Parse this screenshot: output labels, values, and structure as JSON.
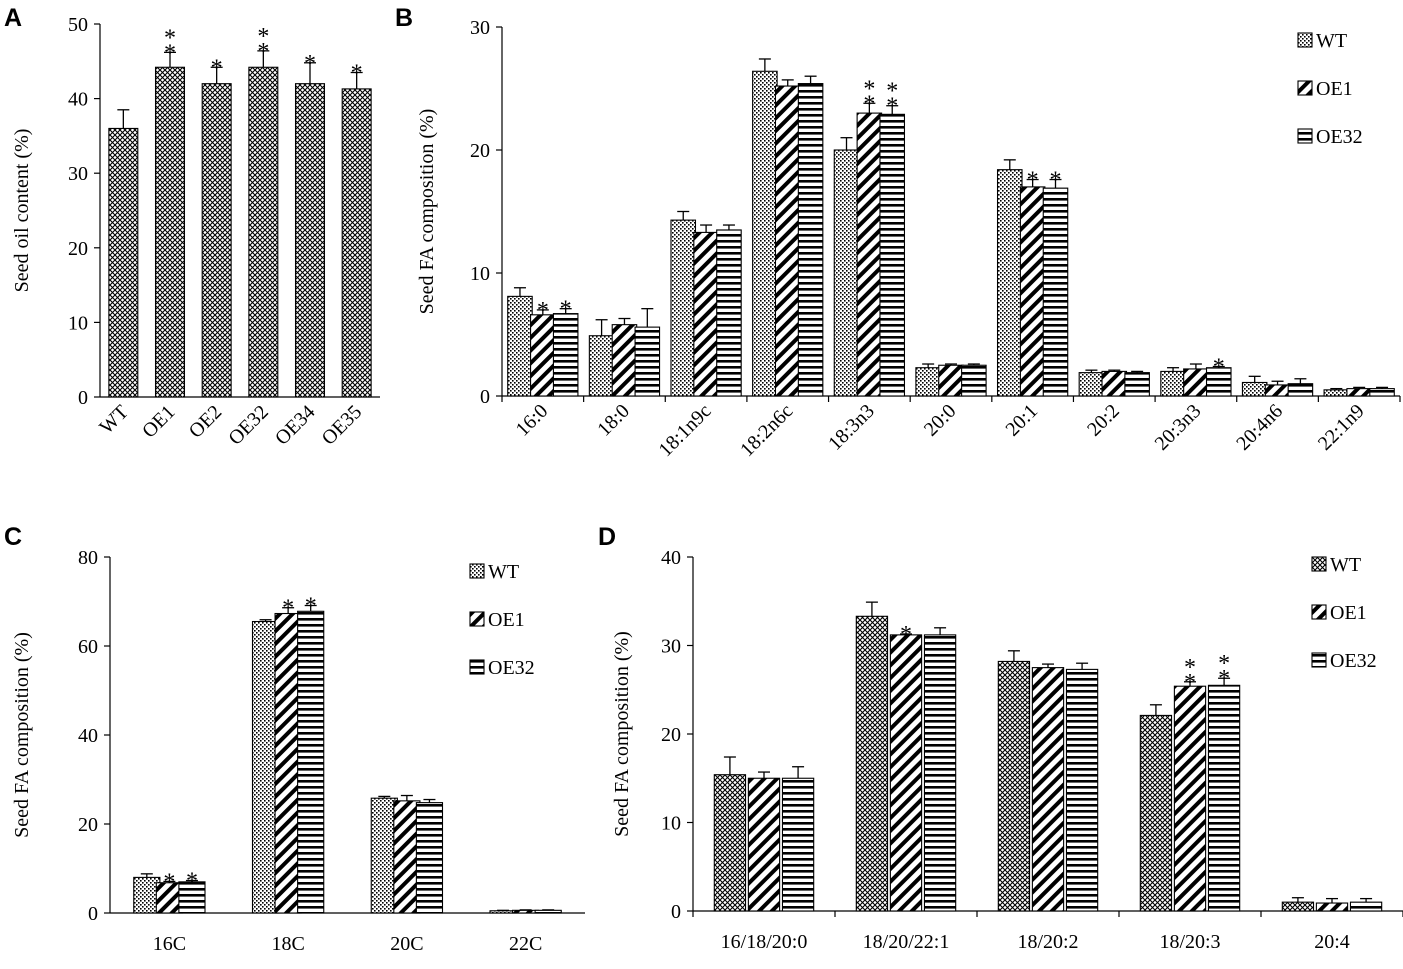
{
  "chart_data": [
    {
      "panel": "A",
      "type": "bar",
      "ylabel": "Seed oil content (%)",
      "xlabel": "",
      "ylim": [
        0,
        50
      ],
      "yticks": [
        0,
        10,
        20,
        30,
        40,
        50
      ],
      "categories": [
        "WT",
        "OE1",
        "OE2",
        "OE32",
        "OE34",
        "OE35"
      ],
      "series": [
        {
          "name": "Seed oil content",
          "values": [
            36.0,
            44.2,
            42.0,
            44.2,
            42.0,
            41.3
          ],
          "errors": [
            2.5,
            2.0,
            2.2,
            2.2,
            2.8,
            2.2
          ],
          "stars": [
            "",
            "**",
            "*",
            "**",
            "*",
            "*"
          ],
          "pattern": "cross"
        }
      ]
    },
    {
      "panel": "B",
      "type": "bar",
      "ylabel": "Seed FA composition (%)",
      "xlabel": "",
      "ylim": [
        0,
        30
      ],
      "yticks": [
        0,
        10,
        20,
        30
      ],
      "legend_position": "top-right",
      "categories": [
        "16:0",
        "18:0",
        "18:1n9c",
        "18:2n6c",
        "18:3n3",
        "20:0",
        "20:1",
        "20:2",
        "20:3n3",
        "20:4n6",
        "22:1n9"
      ],
      "series": [
        {
          "name": "WT",
          "pattern": "dots",
          "values": [
            8.1,
            4.9,
            14.3,
            26.4,
            20.0,
            2.3,
            18.4,
            1.9,
            2.0,
            1.1,
            0.5
          ],
          "errors": [
            0.7,
            1.3,
            0.7,
            1.0,
            1.0,
            0.3,
            0.8,
            0.2,
            0.3,
            0.5,
            0.1
          ],
          "stars": [
            "",
            "",
            "",
            "",
            "",
            "",
            "",
            "",
            "",
            "",
            ""
          ]
        },
        {
          "name": "OE1",
          "pattern": "diag",
          "values": [
            6.6,
            5.8,
            13.3,
            25.2,
            23.0,
            2.5,
            17.0,
            2.0,
            2.2,
            0.9,
            0.6
          ],
          "errors": [
            0.4,
            0.5,
            0.6,
            0.5,
            0.8,
            0.1,
            0.6,
            0.1,
            0.4,
            0.3,
            0.1
          ],
          "stars": [
            "*",
            "",
            "",
            "",
            "**",
            "",
            "*",
            "",
            "",
            "",
            ""
          ]
        },
        {
          "name": "OE32",
          "pattern": "horiz",
          "values": [
            6.7,
            5.6,
            13.5,
            25.4,
            22.9,
            2.5,
            16.9,
            1.9,
            2.3,
            1.0,
            0.6
          ],
          "errors": [
            0.4,
            1.5,
            0.4,
            0.6,
            0.7,
            0.1,
            0.7,
            0.1,
            0.1,
            0.4,
            0.1
          ],
          "stars": [
            "*",
            "",
            "",
            "",
            "**",
            "",
            "*",
            "",
            "*",
            "",
            ""
          ]
        }
      ]
    },
    {
      "panel": "C",
      "type": "bar",
      "ylabel": "Seed FA composition (%)",
      "xlabel": "",
      "ylim": [
        0,
        80
      ],
      "yticks": [
        0,
        20,
        40,
        60,
        80
      ],
      "legend_position": "top-right",
      "categories": [
        "16C",
        "18C",
        "20C",
        "22C"
      ],
      "series": [
        {
          "name": "WT",
          "pattern": "dots",
          "values": [
            8.0,
            65.5,
            25.8,
            0.5
          ],
          "errors": [
            0.8,
            0.4,
            0.4,
            0.1
          ],
          "stars": [
            "",
            "",
            "",
            ""
          ]
        },
        {
          "name": "OE1",
          "pattern": "diag",
          "values": [
            6.8,
            67.3,
            25.2,
            0.6
          ],
          "errors": [
            0.3,
            1.3,
            1.2,
            0.1
          ],
          "stars": [
            "*",
            "*",
            "",
            ""
          ]
        },
        {
          "name": "OE32",
          "pattern": "horiz",
          "values": [
            7.0,
            67.8,
            24.8,
            0.6
          ],
          "errors": [
            0.3,
            1.3,
            0.7,
            0.1
          ],
          "stars": [
            "*",
            "*",
            "",
            ""
          ]
        }
      ]
    },
    {
      "panel": "D",
      "type": "bar",
      "ylabel": "Seed FA composition (%)",
      "xlabel": "",
      "ylim": [
        0,
        40
      ],
      "yticks": [
        0,
        10,
        20,
        30,
        40
      ],
      "legend_position": "top-right",
      "categories": [
        "16/18/20:0",
        "18/20/22:1",
        "18/20:2",
        "18/20:3",
        "20:4"
      ],
      "series": [
        {
          "name": "WT",
          "pattern": "cross",
          "values": [
            15.4,
            33.3,
            28.2,
            22.1,
            1.0
          ],
          "errors": [
            2.0,
            1.6,
            1.2,
            1.2,
            0.5
          ],
          "stars": [
            "",
            "",
            "",
            "",
            ""
          ]
        },
        {
          "name": "OE1",
          "pattern": "diag",
          "values": [
            15.0,
            31.2,
            27.5,
            25.4,
            0.9
          ],
          "errors": [
            0.7,
            0.1,
            0.4,
            0.5,
            0.5
          ],
          "stars": [
            "",
            "*",
            "",
            "**",
            ""
          ]
        },
        {
          "name": "OE32",
          "pattern": "horiz",
          "values": [
            15.0,
            31.2,
            27.3,
            25.5,
            1.0
          ],
          "errors": [
            1.3,
            0.8,
            0.7,
            0.8,
            0.4
          ],
          "stars": [
            "",
            "",
            "",
            "**",
            ""
          ]
        }
      ]
    }
  ]
}
